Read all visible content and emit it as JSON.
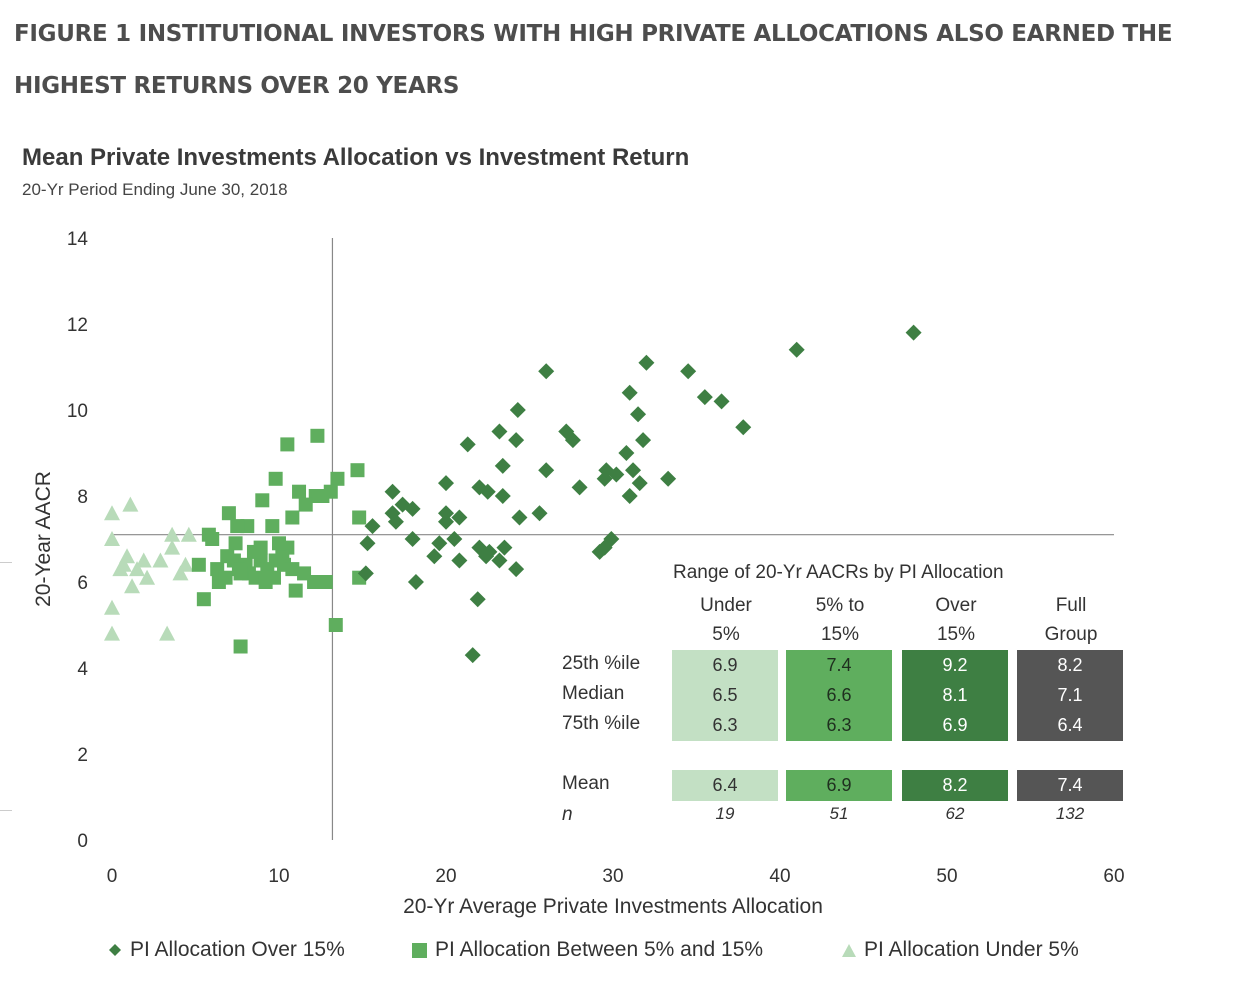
{
  "figure_title": "FIGURE 1 INSTITUTIONAL INVESTORS WITH HIGH PRIVATE ALLOCATIONS ALSO EARNED THE HIGHEST RETURNS OVER 20 YEARS",
  "colors": {
    "over": "#3e7f43",
    "between": "#5fae5e",
    "under": "#b8dbb9",
    "full": "#555555"
  },
  "chart_data": {
    "type": "scatter",
    "title": "Mean Private Investments Allocation vs Investment Return",
    "subtitle": "20-Yr Period Ending June 30, 2018",
    "xlabel": "20-Yr  Average Private Investments Allocation",
    "ylabel": "20-Year AACR",
    "xlim": [
      0,
      60
    ],
    "ylim": [
      0,
      14
    ],
    "xticks": [
      "0",
      "10",
      "20",
      "30",
      "40",
      "50",
      "60"
    ],
    "yticks": [
      "0",
      "2",
      "4",
      "6",
      "8",
      "10",
      "12",
      "14"
    ],
    "reference_lines": {
      "x": 13.2,
      "y": 7.1
    },
    "grid": false,
    "legend_position": "bottom",
    "series": [
      {
        "name": "PI Allocation Over 15%",
        "marker": "diamond",
        "points": [
          [
            48,
            11.8
          ],
          [
            41,
            11.4
          ],
          [
            32,
            11.1
          ],
          [
            34.5,
            10.9
          ],
          [
            26,
            10.9
          ],
          [
            35.5,
            10.3
          ],
          [
            36.5,
            10.2
          ],
          [
            31,
            10.4
          ],
          [
            37.8,
            9.6
          ],
          [
            24.3,
            10
          ],
          [
            31.5,
            9.9
          ],
          [
            23.2,
            9.5
          ],
          [
            27.2,
            9.5
          ],
          [
            27.6,
            9.3
          ],
          [
            24.2,
            9.3
          ],
          [
            31.8,
            9.3
          ],
          [
            21.3,
            9.2
          ],
          [
            30.8,
            9
          ],
          [
            23.4,
            8.7
          ],
          [
            26,
            8.6
          ],
          [
            29.6,
            8.6
          ],
          [
            31.2,
            8.6
          ],
          [
            33.3,
            8.4
          ],
          [
            29.5,
            8.4
          ],
          [
            30.2,
            8.5
          ],
          [
            31.6,
            8.3
          ],
          [
            20,
            8.3
          ],
          [
            28,
            8.2
          ],
          [
            22.5,
            8.1
          ],
          [
            23.4,
            8
          ],
          [
            31,
            8
          ],
          [
            22,
            8.2
          ],
          [
            16.8,
            8.1
          ],
          [
            18,
            7.7
          ],
          [
            16.8,
            7.6
          ],
          [
            17.4,
            7.8
          ],
          [
            20,
            7.6
          ],
          [
            25.6,
            7.6
          ],
          [
            24.4,
            7.5
          ],
          [
            20.8,
            7.5
          ],
          [
            17,
            7.4
          ],
          [
            15.6,
            7.3
          ],
          [
            20,
            7.4
          ],
          [
            18,
            7
          ],
          [
            15.3,
            6.9
          ],
          [
            20.5,
            7
          ],
          [
            19.6,
            6.9
          ],
          [
            22,
            6.8
          ],
          [
            22.6,
            6.7
          ],
          [
            23.5,
            6.8
          ],
          [
            29.5,
            6.8
          ],
          [
            29.2,
            6.7
          ],
          [
            22.4,
            6.6
          ],
          [
            19.3,
            6.6
          ],
          [
            20.8,
            6.5
          ],
          [
            23.2,
            6.5
          ],
          [
            24.2,
            6.3
          ],
          [
            15.2,
            6.2
          ],
          [
            18.2,
            6
          ],
          [
            21.9,
            5.6
          ],
          [
            21.6,
            4.3
          ],
          [
            29.9,
            7
          ]
        ]
      },
      {
        "name": "PI Allocation Between 5% and 15%",
        "marker": "square",
        "points": [
          [
            12.3,
            9.4
          ],
          [
            10.5,
            9.2
          ],
          [
            14.7,
            8.6
          ],
          [
            9.8,
            8.4
          ],
          [
            13.5,
            8.4
          ],
          [
            11.2,
            8.1
          ],
          [
            12.6,
            8
          ],
          [
            12.2,
            8
          ],
          [
            13.1,
            8.1
          ],
          [
            9,
            7.9
          ],
          [
            11.6,
            7.8
          ],
          [
            7,
            7.6
          ],
          [
            10.8,
            7.5
          ],
          [
            8.1,
            7.3
          ],
          [
            9.6,
            7.3
          ],
          [
            7.5,
            7.3
          ],
          [
            14.8,
            7.5
          ],
          [
            5.8,
            7.1
          ],
          [
            6,
            7
          ],
          [
            7.4,
            6.9
          ],
          [
            8.9,
            6.8
          ],
          [
            10.5,
            6.8
          ],
          [
            10.2,
            6.6
          ],
          [
            7.3,
            6.5
          ],
          [
            8.9,
            6.5
          ],
          [
            9.8,
            6.5
          ],
          [
            8,
            6.4
          ],
          [
            10.3,
            6.4
          ],
          [
            6.3,
            6.3
          ],
          [
            7.6,
            6.3
          ],
          [
            8.2,
            6.2
          ],
          [
            9.3,
            6.3
          ],
          [
            10.8,
            6.3
          ],
          [
            7.7,
            6.2
          ],
          [
            8.6,
            6.1
          ],
          [
            9.7,
            6.1
          ],
          [
            6.4,
            6
          ],
          [
            12.1,
            6
          ],
          [
            12.8,
            6
          ],
          [
            14.8,
            6.1
          ],
          [
            11,
            5.8
          ],
          [
            5.5,
            5.6
          ],
          [
            13.4,
            5
          ],
          [
            7.7,
            4.5
          ],
          [
            6.8,
            6.1
          ],
          [
            9.2,
            6
          ],
          [
            10,
            6.9
          ],
          [
            8.5,
            6.7
          ],
          [
            11.5,
            6.2
          ],
          [
            6.9,
            6.6
          ],
          [
            5.2,
            6.4
          ]
        ]
      },
      {
        "name": "PI Allocation Under 5%",
        "marker": "triangle",
        "points": [
          [
            1.1,
            7.8
          ],
          [
            0,
            7.6
          ],
          [
            0,
            7
          ],
          [
            4.6,
            7.1
          ],
          [
            3.6,
            7.1
          ],
          [
            2.9,
            6.5
          ],
          [
            3.6,
            6.8
          ],
          [
            1.9,
            6.5
          ],
          [
            4.1,
            6.2
          ],
          [
            0.7,
            6.4
          ],
          [
            1.5,
            6.3
          ],
          [
            4.4,
            6.4
          ],
          [
            0.5,
            6.3
          ],
          [
            2.1,
            6.1
          ],
          [
            1.2,
            5.9
          ],
          [
            0.9,
            6.6
          ],
          [
            0,
            5.4
          ],
          [
            0,
            4.8
          ],
          [
            3.3,
            4.8
          ]
        ]
      }
    ],
    "table": {
      "title": "Range of 20-Yr AACRs by PI Allocation",
      "columns": [
        {
          "line1": "Under",
          "line2": "5%"
        },
        {
          "line1": "5% to",
          "line2": "15%"
        },
        {
          "line1": "Over",
          "line2": "15%"
        },
        {
          "line1": "Full",
          "line2": "Group"
        }
      ],
      "row_labels": {
        "p25": "25th %ile",
        "median": "Median",
        "p75": "75th %ile",
        "mean": "Mean",
        "n": "n"
      },
      "values": {
        "p25": [
          "6.9",
          "7.4",
          "9.2",
          "8.2"
        ],
        "median": [
          "6.5",
          "6.6",
          "8.1",
          "7.1"
        ],
        "p75": [
          "6.3",
          "6.3",
          "6.9",
          "6.4"
        ],
        "mean": [
          "6.4",
          "6.9",
          "8.2",
          "7.4"
        ],
        "n": [
          "19",
          "51",
          "62",
          "132"
        ]
      }
    }
  }
}
